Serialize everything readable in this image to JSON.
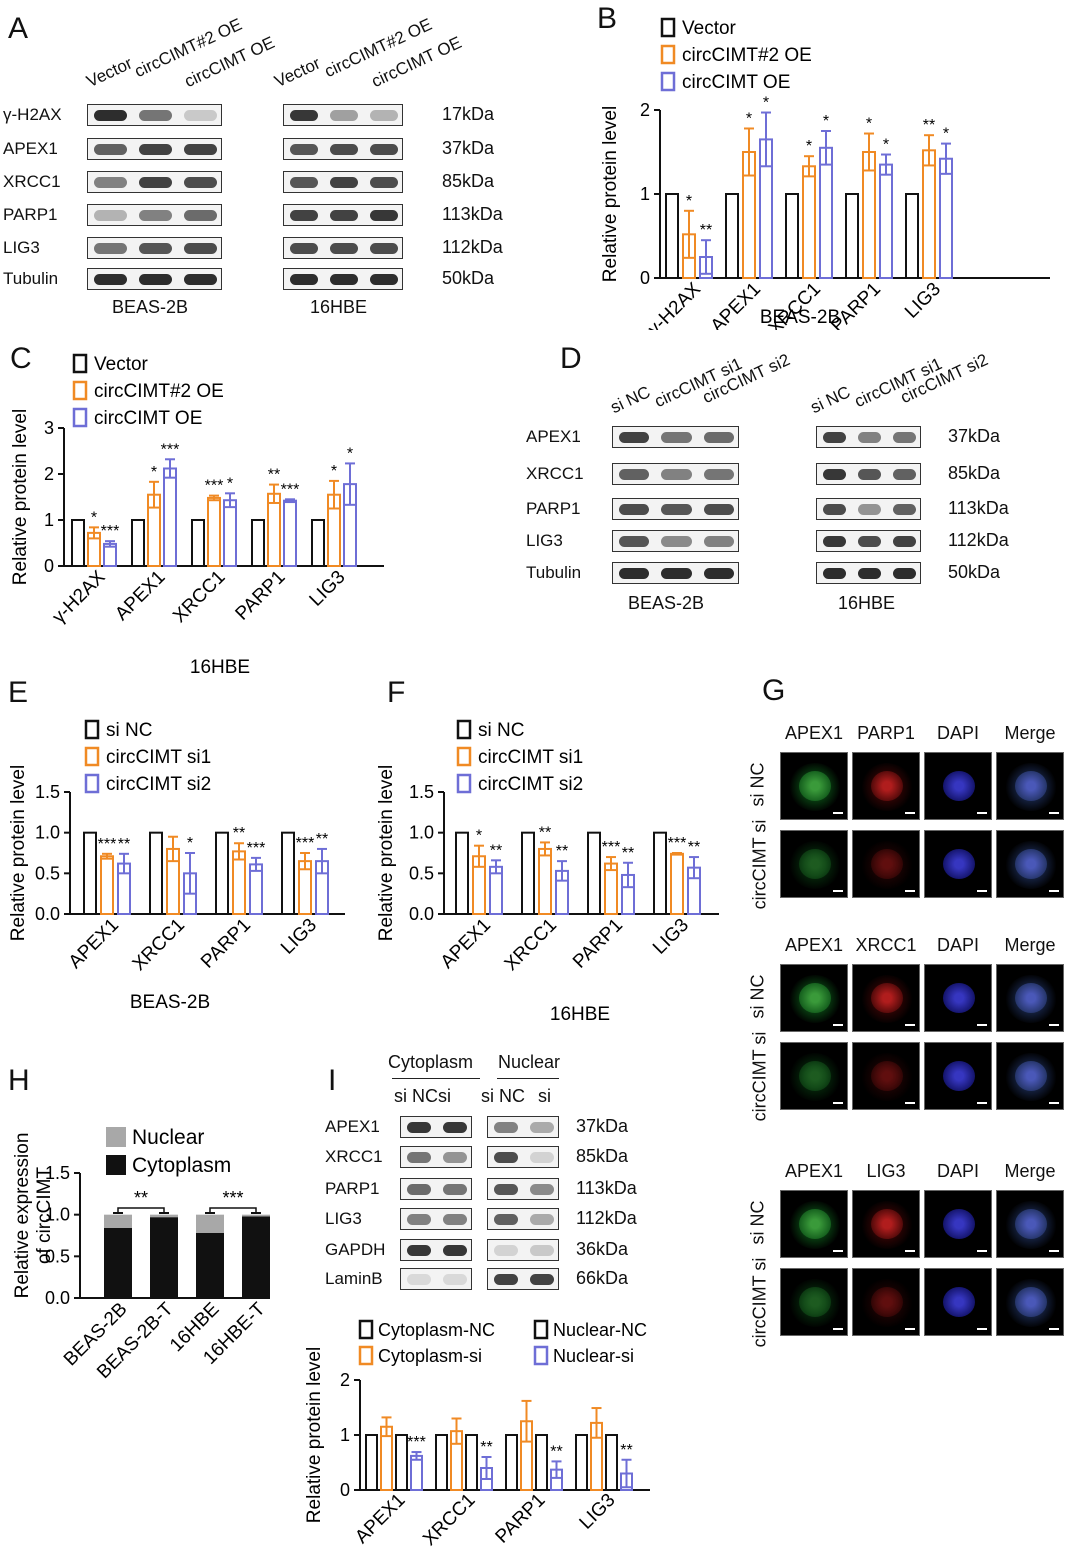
{
  "panels": {
    "A": {
      "label": "A",
      "lanes": [
        "Vector",
        "circCIMT#2 OE",
        "circCIMT OE"
      ],
      "rows": [
        "γ-H2AX",
        "APEX1",
        "XRCC1",
        "PARP1",
        "LIG3",
        "Tubulin"
      ],
      "kda": [
        "17kDa",
        "37kDa",
        "85kDa",
        "113kDa",
        "112kDa",
        "50kDa"
      ],
      "cells": [
        "BEAS-2B",
        "16HBE"
      ]
    },
    "B": {
      "label": "B",
      "cell": "BEAS-2B"
    },
    "C": {
      "label": "C",
      "cell": "16HBE"
    },
    "D": {
      "label": "D",
      "lanes": [
        "si NC",
        "circCIMT si1",
        "circCIMT si2"
      ],
      "rows": [
        "APEX1",
        "XRCC1",
        "PARP1",
        "LIG3",
        "Tubulin"
      ],
      "kda": [
        "37kDa",
        "85kDa",
        "113kDa",
        "112kDa",
        "50kDa"
      ],
      "cells": [
        "BEAS-2B",
        "16HBE"
      ]
    },
    "E": {
      "label": "E",
      "cell": "BEAS-2B"
    },
    "F": {
      "label": "F",
      "cell": "16HBE"
    },
    "G": {
      "label": "G",
      "blocks": [
        {
          "headers": [
            "APEX1",
            "PARP1",
            "DAPI",
            "Merge"
          ],
          "rows": [
            "si NC",
            "circCIMT si"
          ]
        },
        {
          "headers": [
            "APEX1",
            "XRCC1",
            "DAPI",
            "Merge"
          ],
          "rows": [
            "si NC",
            "circCIMT si"
          ]
        },
        {
          "headers": [
            "APEX1",
            "LIG3",
            "DAPI",
            "Merge"
          ],
          "rows": [
            "si NC",
            "circCIMT si"
          ]
        }
      ]
    },
    "H": {
      "label": "H"
    },
    "I": {
      "label": "I",
      "fractions": [
        "Cytoplasm",
        "Nuclear"
      ],
      "lanes": [
        "si NC",
        "si",
        "si NC",
        "si"
      ],
      "rows": [
        "APEX1",
        "XRCC1",
        "PARP1",
        "LIG3",
        "GAPDH",
        "LaminB"
      ],
      "kda": [
        "37kDa",
        "85kDa",
        "113kDa",
        "112kDa",
        "36kDa",
        "66kDa"
      ]
    }
  },
  "colors": {
    "black": "#111111",
    "orange": "#F08A24",
    "blue": "#6E6ED6",
    "gray": "#A8A8A8"
  },
  "chart_data": [
    {
      "id": "B",
      "type": "bar",
      "ylabel": "Relative protein level",
      "xlabel": "BEAS-2B",
      "ylim": [
        0,
        2
      ],
      "yticks": [
        0,
        1,
        2
      ],
      "categories": [
        "γ-H2AX",
        "APEX1",
        "XRCC1",
        "PARP1",
        "LIG3"
      ],
      "series": [
        {
          "name": "Vector",
          "color": "black",
          "values": [
            1,
            1,
            1,
            1,
            1
          ],
          "err": [
            0,
            0,
            0,
            0,
            0
          ],
          "sig": [
            "",
            "",
            "",
            "",
            ""
          ]
        },
        {
          "name": "circCIMT#2 OE",
          "color": "orange",
          "values": [
            0.52,
            1.5,
            1.33,
            1.5,
            1.52
          ],
          "err": [
            0.28,
            0.28,
            0.12,
            0.22,
            0.18
          ],
          "sig": [
            "*",
            "*",
            "*",
            "*",
            "**"
          ]
        },
        {
          "name": "circCIMT OE",
          "color": "blue",
          "values": [
            0.25,
            1.65,
            1.55,
            1.35,
            1.42
          ],
          "err": [
            0.2,
            0.32,
            0.2,
            0.12,
            0.18
          ],
          "sig": [
            "**",
            "*",
            "*",
            "*",
            "*"
          ]
        }
      ]
    },
    {
      "id": "C",
      "type": "bar",
      "ylabel": "Relative protein level",
      "xlabel": "16HBE",
      "ylim": [
        0,
        3
      ],
      "yticks": [
        0,
        1,
        2,
        3
      ],
      "categories": [
        "γ-H2AX",
        "APEX1",
        "XRCC1",
        "PARP1",
        "LIG3"
      ],
      "series": [
        {
          "name": "Vector",
          "color": "black",
          "values": [
            1,
            1,
            1,
            1,
            1
          ],
          "err": [
            0,
            0,
            0,
            0,
            0
          ],
          "sig": [
            "",
            "",
            "",
            "",
            ""
          ]
        },
        {
          "name": "circCIMT#2 OE",
          "color": "orange",
          "values": [
            0.72,
            1.55,
            1.48,
            1.57,
            1.55
          ],
          "err": [
            0.12,
            0.28,
            0.05,
            0.2,
            0.3
          ],
          "sig": [
            "*",
            "*",
            "***",
            "**",
            "*"
          ]
        },
        {
          "name": "circCIMT OE",
          "color": "blue",
          "values": [
            0.48,
            2.12,
            1.43,
            1.42,
            1.78
          ],
          "err": [
            0.06,
            0.2,
            0.15,
            0.03,
            0.45
          ],
          "sig": [
            "***",
            "***",
            "*",
            "***",
            "*"
          ]
        }
      ]
    },
    {
      "id": "E",
      "type": "bar",
      "ylabel": "Relative protein level",
      "xlabel": "BEAS-2B",
      "ylim": [
        0,
        1.5
      ],
      "yticks": [
        0.0,
        0.5,
        1.0,
        1.5
      ],
      "categories": [
        "APEX1",
        "XRCC1",
        "PARP1",
        "LIG3"
      ],
      "series": [
        {
          "name": "si NC",
          "color": "black",
          "values": [
            1,
            1,
            1,
            1
          ],
          "err": [
            0,
            0,
            0,
            0
          ],
          "sig": [
            "",
            "",
            "",
            ""
          ]
        },
        {
          "name": "circCIMT si1",
          "color": "orange",
          "values": [
            0.71,
            0.8,
            0.77,
            0.65
          ],
          "err": [
            0.03,
            0.15,
            0.1,
            0.1
          ],
          "sig": [
            "***",
            "",
            "**",
            "***"
          ]
        },
        {
          "name": "circCIMT si2",
          "color": "blue",
          "values": [
            0.62,
            0.5,
            0.61,
            0.65
          ],
          "err": [
            0.12,
            0.25,
            0.08,
            0.15
          ],
          "sig": [
            "**",
            "*",
            "***",
            "**"
          ]
        }
      ]
    },
    {
      "id": "F",
      "type": "bar",
      "ylabel": "Relative protein level",
      "xlabel": "16HBE",
      "ylim": [
        0,
        1.5
      ],
      "yticks": [
        0.0,
        0.5,
        1.0,
        1.5
      ],
      "categories": [
        "APEX1",
        "XRCC1",
        "PARP1",
        "LIG3"
      ],
      "series": [
        {
          "name": "si NC",
          "color": "black",
          "values": [
            1,
            1,
            1,
            1
          ],
          "err": [
            0,
            0,
            0,
            0
          ],
          "sig": [
            "",
            "",
            "",
            ""
          ]
        },
        {
          "name": "circCIMT si1",
          "color": "orange",
          "values": [
            0.71,
            0.8,
            0.62,
            0.74
          ],
          "err": [
            0.13,
            0.08,
            0.08,
            0.01
          ],
          "sig": [
            "*",
            "**",
            "***",
            "***"
          ]
        },
        {
          "name": "circCIMT si2",
          "color": "blue",
          "values": [
            0.58,
            0.53,
            0.48,
            0.57
          ],
          "err": [
            0.08,
            0.12,
            0.15,
            0.13
          ],
          "sig": [
            "**",
            "**",
            "**",
            "**"
          ]
        }
      ]
    },
    {
      "id": "H",
      "type": "bar",
      "stacked": true,
      "ylabel": "Relative expression of circCIMT",
      "xlabel": "",
      "ylim": [
        0,
        1.5
      ],
      "yticks": [
        0.0,
        0.5,
        1.0,
        1.5
      ],
      "categories": [
        "BEAS-2B",
        "BEAS-2B-T",
        "16HBE",
        "16HBE-T"
      ],
      "series": [
        {
          "name": "Nuclear",
          "color": "gray",
          "values": [
            0.16,
            0.03,
            0.22,
            0.02
          ]
        },
        {
          "name": "Cytoplasm",
          "color": "black",
          "values": [
            0.84,
            0.97,
            0.78,
            0.98
          ]
        }
      ],
      "sig": [
        {
          "from": 0,
          "to": 1,
          "text": "**"
        },
        {
          "from": 2,
          "to": 3,
          "text": "***"
        }
      ]
    },
    {
      "id": "I",
      "type": "bar",
      "ylabel": "Relative protein level",
      "xlabel": "",
      "ylim": [
        0,
        2
      ],
      "yticks": [
        0,
        1,
        2
      ],
      "categories": [
        "APEX1",
        "XRCC1",
        "PARP1",
        "LIG3"
      ],
      "series": [
        {
          "name": "Cytoplasm-NC",
          "color": "black",
          "values": [
            1,
            1,
            1,
            1
          ],
          "err": [
            0,
            0,
            0,
            0
          ],
          "sig": [
            "",
            "",
            "",
            ""
          ]
        },
        {
          "name": "Cytoplasm-si",
          "color": "orange",
          "values": [
            1.15,
            1.07,
            1.25,
            1.22
          ],
          "err": [
            0.17,
            0.23,
            0.37,
            0.27
          ],
          "sig": [
            "",
            "",
            "",
            ""
          ]
        },
        {
          "name": "Nuclear-NC",
          "color": "black",
          "values": [
            1,
            1,
            1,
            1
          ],
          "err": [
            0,
            0,
            0,
            0
          ],
          "sig": [
            "",
            "",
            "",
            ""
          ]
        },
        {
          "name": "Nuclear-si",
          "color": "blue",
          "values": [
            0.62,
            0.4,
            0.37,
            0.3
          ],
          "err": [
            0.07,
            0.2,
            0.15,
            0.25
          ],
          "sig": [
            "***",
            "**",
            "**",
            "**"
          ]
        }
      ]
    }
  ]
}
